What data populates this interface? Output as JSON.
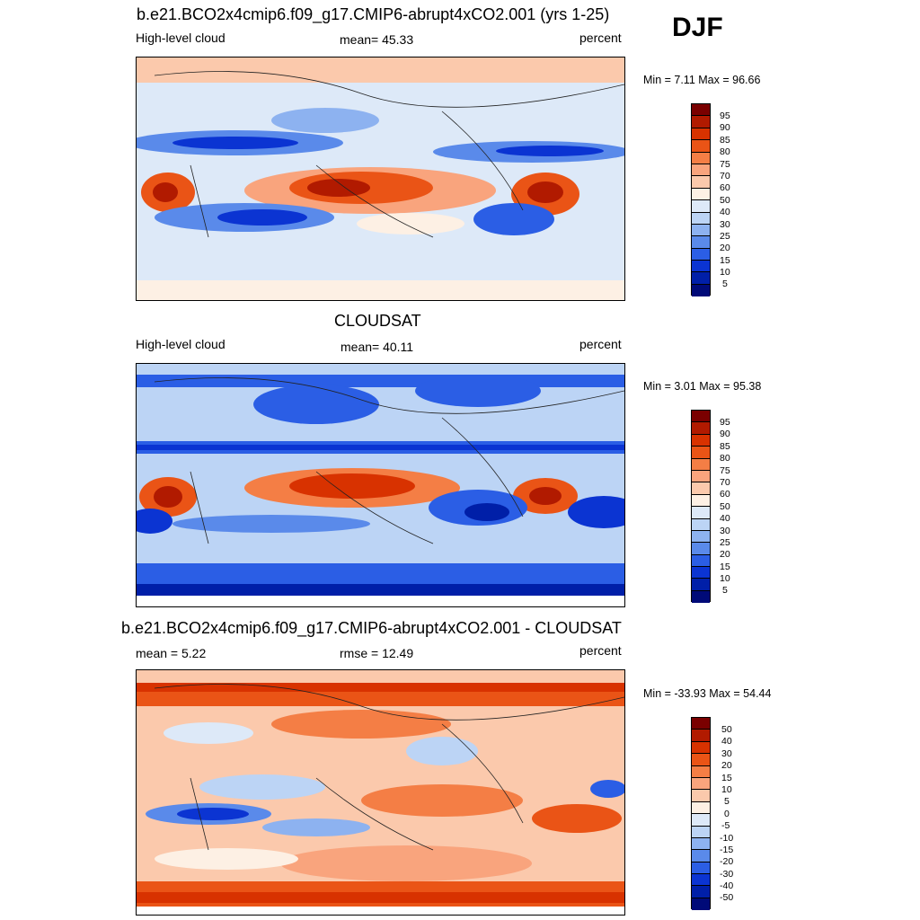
{
  "season": "DJF",
  "panels": [
    {
      "title": "b.e21.BCO2x4cmip6.f09_g17.CMIP6-abrupt4xCO2.001 (yrs 1-25)",
      "left_label": "High-level cloud",
      "center_label": "mean=  45.33",
      "right_label": "percent",
      "minmax": "Min =   7.11 Max =  96.66",
      "levels": [
        "95",
        "90",
        "85",
        "80",
        "75",
        "70",
        "60",
        "50",
        "40",
        "30",
        "25",
        "20",
        "15",
        "10",
        "5"
      ]
    },
    {
      "title": "CLOUDSAT",
      "left_label": "High-level cloud",
      "center_label": "mean=  40.11",
      "right_label": "percent",
      "minmax": "Min =   3.01 Max =  95.38",
      "levels": [
        "95",
        "90",
        "85",
        "80",
        "75",
        "70",
        "60",
        "50",
        "40",
        "30",
        "25",
        "20",
        "15",
        "10",
        "5"
      ]
    },
    {
      "title": "b.e21.BCO2x4cmip6.f09_g17.CMIP6-abrupt4xCO2.001 - CLOUDSAT",
      "left_label": "mean =   5.22",
      "center_label": "rmse =  12.49",
      "right_label": "percent",
      "minmax": "Min = -33.93 Max =  54.44",
      "levels": [
        "50",
        "40",
        "30",
        "20",
        "15",
        "10",
        "5",
        "0",
        "-5",
        "-10",
        "-15",
        "-20",
        "-30",
        "-40",
        "-50"
      ]
    }
  ],
  "colors": {
    "scale": [
      "#7a0000",
      "#b11a00",
      "#d83200",
      "#ea5416",
      "#f47e45",
      "#f9a47d",
      "#fbc9ac",
      "#fdf0e4",
      "#dde9f8",
      "#bcd4f5",
      "#8db2f0",
      "#5a8aea",
      "#2b5ee5",
      "#0b34d2",
      "#001fa8",
      "#000a78"
    ]
  }
}
